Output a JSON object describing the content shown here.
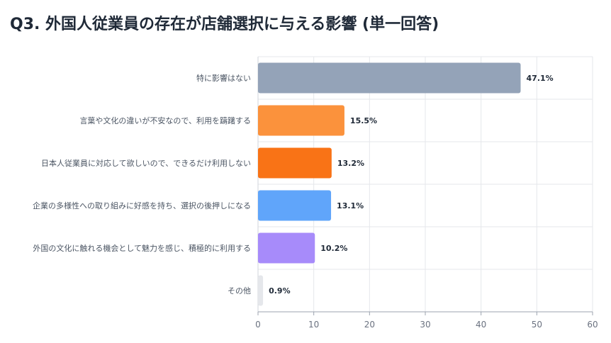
{
  "title": "Q3. 外国人従業員の存在が店舗選択に与える影響 (単一回答)",
  "chart_data": {
    "type": "bar",
    "orientation": "horizontal",
    "title": "Q3. 外国人従業員の存在が店舗選択に与える影響 (単一回答)",
    "xlabel": "",
    "ylabel": "",
    "xlim": [
      0,
      60
    ],
    "x_ticks": [
      "0",
      "10",
      "20",
      "30",
      "40",
      "50",
      "60"
    ],
    "grid": true,
    "legend": "none",
    "categories": [
      "特に影響はない",
      "言葉や文化の違いが不安なので、利用を躊躇する",
      "日本人従業員に対応して欲しいので、できるだけ利用しない",
      "企業の多様性への取り組みに好感を持ち、選択の後押しになる",
      "外国の文化に触れる機会として魅力を感じ、積極的に利用する",
      "その他"
    ],
    "values": [
      47.1,
      15.5,
      13.2,
      13.1,
      10.2,
      0.9
    ],
    "value_labels": [
      "47.1%",
      "15.5%",
      "13.2%",
      "13.1%",
      "10.2%",
      "0.9%"
    ],
    "colors": [
      "#94a3b8",
      "#fb923c",
      "#f97316",
      "#60a5fa",
      "#a78bfa",
      "#e5e7eb"
    ]
  }
}
